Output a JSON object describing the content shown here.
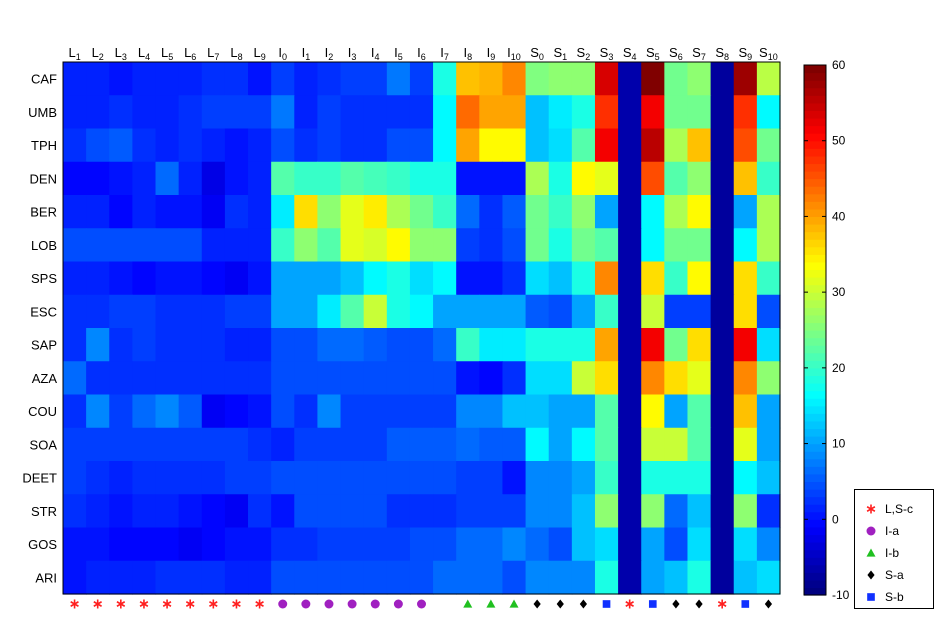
{
  "chart_data": {
    "type": "heatmap",
    "columns": [
      {
        "base": "L",
        "sub": "1"
      },
      {
        "base": "L",
        "sub": "2"
      },
      {
        "base": "L",
        "sub": "3"
      },
      {
        "base": "L",
        "sub": "4"
      },
      {
        "base": "L",
        "sub": "5"
      },
      {
        "base": "L",
        "sub": "6"
      },
      {
        "base": "L",
        "sub": "7"
      },
      {
        "base": "L",
        "sub": "8"
      },
      {
        "base": "L",
        "sub": "9"
      },
      {
        "base": "I",
        "sub": "0"
      },
      {
        "base": "I",
        "sub": "1"
      },
      {
        "base": "I",
        "sub": "2"
      },
      {
        "base": "I",
        "sub": "3"
      },
      {
        "base": "I",
        "sub": "4"
      },
      {
        "base": "I",
        "sub": "5"
      },
      {
        "base": "I",
        "sub": "6"
      },
      {
        "base": "I",
        "sub": "7"
      },
      {
        "base": "I",
        "sub": "8"
      },
      {
        "base": "I",
        "sub": "9"
      },
      {
        "base": "I",
        "sub": "10"
      },
      {
        "base": "S",
        "sub": "0"
      },
      {
        "base": "S",
        "sub": "1"
      },
      {
        "base": "S",
        "sub": "2"
      },
      {
        "base": "S",
        "sub": "3"
      },
      {
        "base": "S",
        "sub": "4"
      },
      {
        "base": "S",
        "sub": "5"
      },
      {
        "base": "S",
        "sub": "6"
      },
      {
        "base": "S",
        "sub": "7"
      },
      {
        "base": "S",
        "sub": "8"
      },
      {
        "base": "S",
        "sub": "9"
      },
      {
        "base": "S",
        "sub": "10"
      }
    ],
    "rows": [
      "CAF",
      "UMB",
      "TPH",
      "DEN",
      "BER",
      "LOB",
      "SPS",
      "ESC",
      "SAP",
      "AZA",
      "COU",
      "SOA",
      "DEET",
      "STR",
      "GOS",
      "ARI"
    ],
    "values": [
      [
        1,
        1,
        0,
        1,
        1,
        1,
        2,
        2,
        0,
        3,
        1,
        2,
        3,
        3,
        7,
        3,
        18,
        38,
        39,
        42,
        25,
        26,
        26,
        54,
        -7,
        64,
        24,
        26,
        -8,
        58,
        29
      ],
      [
        1,
        1,
        2,
        1,
        1,
        2,
        3,
        3,
        3,
        7,
        1,
        3,
        2,
        2,
        2,
        2,
        16,
        44,
        40,
        40,
        12,
        15,
        18,
        48,
        -7,
        52,
        24,
        24,
        -8,
        48,
        16
      ],
      [
        2,
        4,
        5,
        2,
        1,
        2,
        1,
        0,
        1,
        4,
        2,
        3,
        2,
        2,
        4,
        4,
        16,
        40,
        34,
        34,
        12,
        14,
        22,
        52,
        -7,
        56,
        28,
        38,
        -8,
        46,
        24
      ],
      [
        -1,
        -1,
        0,
        1,
        6,
        1,
        -3,
        0,
        1,
        22,
        20,
        20,
        22,
        21,
        20,
        18,
        18,
        0,
        0,
        0,
        28,
        18,
        34,
        32,
        -7,
        46,
        22,
        26,
        -8,
        38,
        20
      ],
      [
        1,
        1,
        -1,
        1,
        0,
        0,
        -2,
        2,
        1,
        15,
        36,
        26,
        32,
        35,
        28,
        24,
        20,
        6,
        2,
        5,
        24,
        20,
        26,
        10,
        -7,
        16,
        28,
        34,
        -8,
        10,
        28
      ],
      [
        4,
        4,
        4,
        4,
        4,
        4,
        1,
        1,
        1,
        20,
        26,
        22,
        32,
        31,
        34,
        26,
        26,
        3,
        2,
        4,
        24,
        18,
        24,
        22,
        -7,
        16,
        24,
        24,
        -8,
        16,
        28
      ],
      [
        1,
        1,
        0,
        -1,
        0,
        0,
        -1,
        -2,
        0,
        10,
        10,
        10,
        12,
        16,
        18,
        14,
        16,
        0,
        0,
        2,
        14,
        12,
        18,
        42,
        -7,
        36,
        20,
        34,
        -8,
        36,
        20
      ],
      [
        2,
        2,
        3,
        3,
        2,
        2,
        2,
        3,
        3,
        10,
        10,
        15,
        22,
        30,
        18,
        16,
        10,
        10,
        10,
        10,
        5,
        4,
        10,
        20,
        -7,
        30,
        3,
        3,
        -8,
        36,
        4
      ],
      [
        2,
        8,
        2,
        3,
        2,
        2,
        2,
        1,
        1,
        4,
        4,
        6,
        6,
        5,
        4,
        4,
        6,
        20,
        15,
        15,
        18,
        18,
        18,
        40,
        -7,
        52,
        24,
        36,
        -8,
        52,
        14
      ],
      [
        6,
        2,
        2,
        2,
        2,
        2,
        2,
        2,
        2,
        4,
        4,
        4,
        4,
        4,
        4,
        4,
        4,
        0,
        -1,
        2,
        14,
        14,
        30,
        36,
        -7,
        42,
        36,
        32,
        -8,
        42,
        26
      ],
      [
        2,
        8,
        3,
        6,
        8,
        5,
        -2,
        -1,
        0,
        4,
        2,
        8,
        3,
        3,
        3,
        3,
        3,
        8,
        8,
        12,
        12,
        10,
        10,
        22,
        -7,
        34,
        10,
        22,
        -8,
        38,
        10
      ],
      [
        3,
        3,
        3,
        3,
        3,
        3,
        3,
        3,
        2,
        1,
        3,
        3,
        3,
        3,
        5,
        5,
        5,
        6,
        5,
        5,
        16,
        10,
        16,
        22,
        -7,
        30,
        30,
        22,
        -8,
        32,
        10
      ],
      [
        3,
        2,
        1,
        2,
        2,
        2,
        2,
        3,
        3,
        4,
        4,
        4,
        4,
        4,
        4,
        4,
        4,
        3,
        3,
        0,
        8,
        8,
        10,
        20,
        -7,
        18,
        18,
        18,
        -8,
        16,
        12
      ],
      [
        2,
        1,
        0,
        1,
        1,
        0,
        -1,
        -2,
        2,
        0,
        4,
        4,
        4,
        4,
        2,
        2,
        2,
        3,
        3,
        3,
        8,
        8,
        12,
        26,
        -7,
        26,
        6,
        12,
        -8,
        26,
        2
      ],
      [
        0,
        0,
        -1,
        -1,
        -1,
        -2,
        -1,
        0,
        0,
        2,
        2,
        3,
        3,
        3,
        3,
        4,
        4,
        6,
        6,
        8,
        6,
        4,
        12,
        14,
        -7,
        10,
        4,
        14,
        -8,
        14,
        8
      ],
      [
        0,
        1,
        1,
        1,
        2,
        2,
        2,
        1,
        1,
        4,
        4,
        4,
        4,
        4,
        4,
        4,
        6,
        6,
        6,
        4,
        8,
        8,
        8,
        18,
        -7,
        10,
        12,
        18,
        -8,
        12,
        14
      ]
    ],
    "colorbar": {
      "min": -10,
      "max": 60,
      "ticks": [
        -10,
        0,
        10,
        20,
        30,
        40,
        50,
        60
      ],
      "colormap": "jet"
    },
    "column_markers": [
      "S,L-c",
      "S,L-c",
      "S,L-c",
      "S,L-c",
      "S,L-c",
      "S,L-c",
      "S,L-c",
      "S,L-c",
      "S,L-c",
      "I-a",
      "I-a",
      "I-a",
      "I-a",
      "I-a",
      "I-a",
      "I-a",
      "none",
      "I-b",
      "I-b",
      "I-b",
      "S-a",
      "S-a",
      "S-a",
      "S-b",
      "S,L-c",
      "S-b",
      "S-a",
      "S-a",
      "S,L-c",
      "S-b",
      "S-a"
    ],
    "legend": [
      {
        "key": "S,L-c",
        "label": "L,S-c",
        "symbol": "asterisk",
        "color": "#ff2020"
      },
      {
        "key": "I-a",
        "label": "I-a",
        "symbol": "circle",
        "color": "#a020c0"
      },
      {
        "key": "I-b",
        "label": "I-b",
        "symbol": "triangle",
        "color": "#20c020"
      },
      {
        "key": "S-a",
        "label": "S-a",
        "symbol": "diamond",
        "color": "#000000"
      },
      {
        "key": "S-b",
        "label": "S-b",
        "symbol": "square",
        "color": "#1030ff"
      }
    ]
  }
}
